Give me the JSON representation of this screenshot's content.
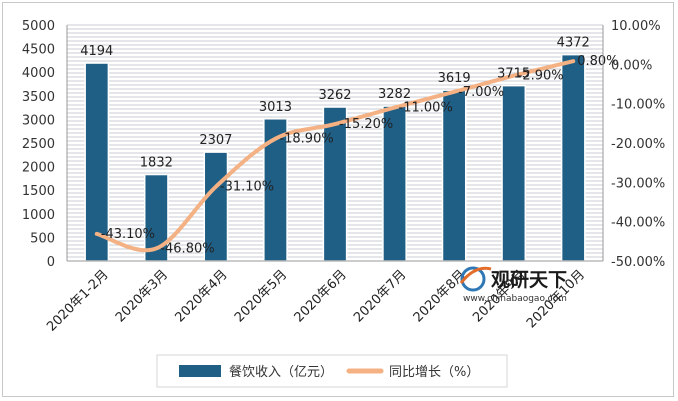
{
  "chart_data": {
    "type": "bar+line",
    "categories": [
      "2020年1-2月",
      "2020年3月",
      "2020年4月",
      "2020年5月",
      "2020年6月",
      "2020年7月",
      "2020年8月",
      "2020年9月",
      "2020年10月"
    ],
    "series": [
      {
        "name": "餐饮收入（亿元）",
        "type": "bar",
        "axis": "left",
        "color": "#1f5f86",
        "values": [
          4194,
          1832,
          2307,
          3013,
          3262,
          3282,
          3619,
          3715,
          4372
        ],
        "labels": [
          "4194",
          "1832",
          "2307",
          "3013",
          "3262",
          "3282",
          "3619",
          "3715",
          "4372"
        ]
      },
      {
        "name": "同比增长（%）",
        "type": "line",
        "axis": "right",
        "color": "#f4b183",
        "values": [
          -43.1,
          -46.8,
          -31.1,
          -18.9,
          -15.2,
          -11.0,
          -7.0,
          -2.9,
          0.8
        ],
        "labels": [
          "-43.10%",
          "-46.80%",
          "-31.10%",
          "-18.90%",
          "-15.20%",
          "-11.00%",
          "-7.00%",
          "-2.90%",
          "0.80%"
        ]
      }
    ],
    "y_left": {
      "lim": [
        0,
        5000
      ],
      "ticks": [
        0,
        500,
        1000,
        1500,
        2000,
        2500,
        3000,
        3500,
        4000,
        4500,
        5000
      ],
      "tick_labels": [
        "0",
        "500",
        "1000",
        "1500",
        "2000",
        "2500",
        "3000",
        "3500",
        "4000",
        "4500",
        "5000"
      ]
    },
    "y_right": {
      "lim": [
        -50,
        10
      ],
      "ticks": [
        10,
        0,
        -10,
        -20,
        -30,
        -40,
        -50
      ],
      "tick_labels": [
        "10.00%",
        "0.00%",
        "-10.00%",
        "-20.00%",
        "-30.00%",
        "-40.00%",
        "-50.00%"
      ]
    },
    "grid": "horizontal",
    "legend": "bottom",
    "title": "",
    "xlabel": "",
    "ylabel": ""
  },
  "watermark": {
    "name": "观研天下",
    "url": "www.chinabaogao.com",
    "icon": "swoosh-logo-icon"
  }
}
